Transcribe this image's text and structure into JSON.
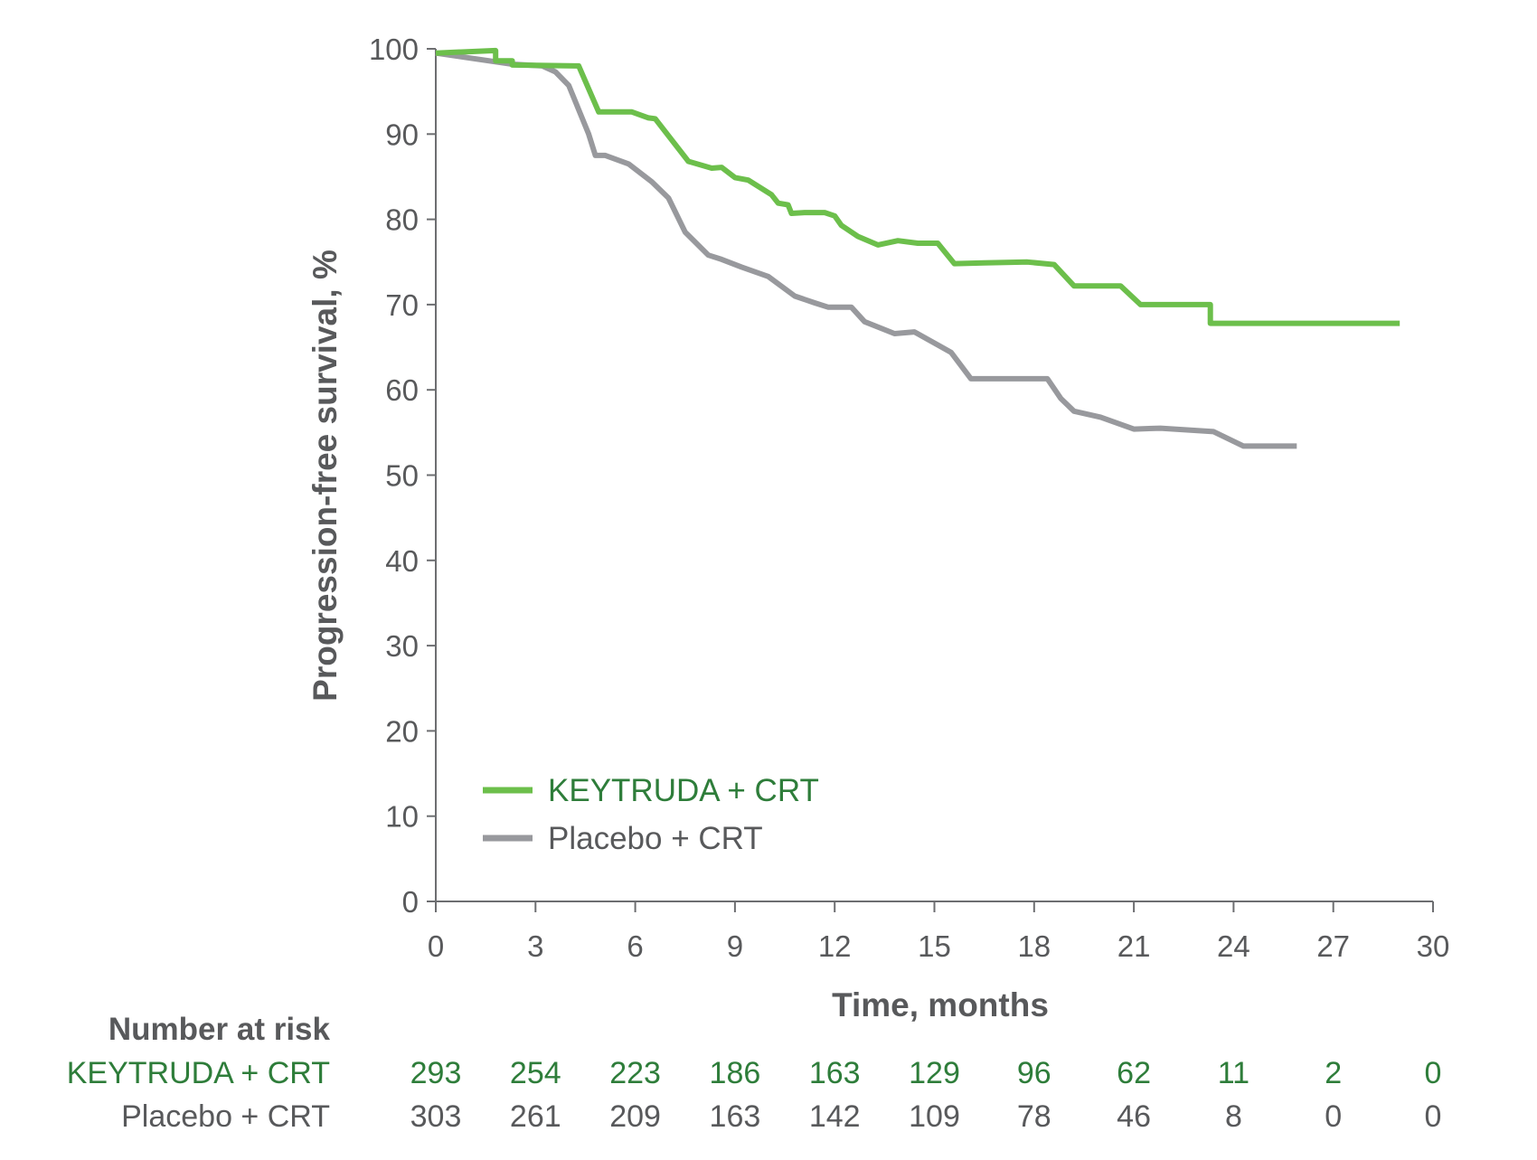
{
  "chart_data": {
    "type": "line",
    "xlabel": "Time, months",
    "ylabel": "Progression-free survival, %",
    "xlim": [
      0,
      30
    ],
    "ylim": [
      0,
      100
    ],
    "xticks": [
      0,
      3,
      6,
      9,
      12,
      15,
      18,
      21,
      24,
      27,
      30
    ],
    "yticks": [
      0,
      10,
      20,
      30,
      40,
      50,
      60,
      70,
      80,
      90,
      100
    ],
    "grid": false,
    "legend_position": "bottom-left",
    "series": [
      {
        "name": "KEYTRUDA + CRT",
        "color": "#6cbf4b",
        "points": [
          [
            0,
            99.5
          ],
          [
            1.8,
            99.8
          ],
          [
            1.8,
            98.6
          ],
          [
            2.3,
            98.6
          ],
          [
            2.3,
            98.1
          ],
          [
            4.3,
            98.0
          ],
          [
            4.9,
            92.6
          ],
          [
            5.9,
            92.6
          ],
          [
            6.4,
            91.9
          ],
          [
            6.6,
            91.8
          ],
          [
            7.6,
            86.8
          ],
          [
            8.3,
            86.0
          ],
          [
            8.6,
            86.1
          ],
          [
            9.0,
            84.9
          ],
          [
            9.4,
            84.6
          ],
          [
            10.1,
            82.9
          ],
          [
            10.3,
            81.9
          ],
          [
            10.6,
            81.7
          ],
          [
            10.7,
            80.7
          ],
          [
            11.1,
            80.8
          ],
          [
            11.7,
            80.8
          ],
          [
            12.0,
            80.4
          ],
          [
            12.2,
            79.3
          ],
          [
            12.7,
            78.0
          ],
          [
            13.3,
            77.0
          ],
          [
            13.9,
            77.5
          ],
          [
            14.5,
            77.2
          ],
          [
            15.1,
            77.2
          ],
          [
            15.6,
            74.8
          ],
          [
            16.5,
            74.9
          ],
          [
            17.8,
            75.0
          ],
          [
            18.6,
            74.7
          ],
          [
            19.2,
            72.2
          ],
          [
            20.6,
            72.2
          ],
          [
            21.2,
            70.0
          ],
          [
            23.3,
            70.0
          ],
          [
            23.3,
            67.8
          ],
          [
            29.0,
            67.8
          ]
        ]
      },
      {
        "name": "Placebo + CRT",
        "color": "#98999d",
        "points": [
          [
            0,
            99.5
          ],
          [
            2.3,
            98.2
          ],
          [
            3.2,
            98.0
          ],
          [
            3.6,
            97.3
          ],
          [
            4.0,
            95.7
          ],
          [
            4.6,
            90.0
          ],
          [
            4.8,
            87.5
          ],
          [
            5.1,
            87.5
          ],
          [
            5.8,
            86.5
          ],
          [
            6.5,
            84.4
          ],
          [
            7.0,
            82.5
          ],
          [
            7.5,
            78.5
          ],
          [
            8.2,
            75.8
          ],
          [
            8.6,
            75.3
          ],
          [
            9.2,
            74.4
          ],
          [
            10.0,
            73.3
          ],
          [
            10.8,
            71.0
          ],
          [
            11.4,
            70.2
          ],
          [
            11.8,
            69.7
          ],
          [
            12.5,
            69.7
          ],
          [
            12.9,
            68.0
          ],
          [
            13.8,
            66.6
          ],
          [
            14.4,
            66.8
          ],
          [
            15.5,
            64.4
          ],
          [
            16.1,
            61.3
          ],
          [
            18.4,
            61.3
          ],
          [
            18.8,
            59.0
          ],
          [
            19.2,
            57.5
          ],
          [
            20.0,
            56.8
          ],
          [
            21.0,
            55.4
          ],
          [
            21.8,
            55.5
          ],
          [
            23.4,
            55.1
          ],
          [
            24.3,
            53.4
          ],
          [
            25.9,
            53.4
          ]
        ]
      }
    ],
    "number_at_risk": {
      "title": "Number at risk",
      "rows": [
        {
          "label": "KEYTRUDA + CRT",
          "color": "#2e7d3a",
          "values": [
            "293",
            "254",
            "223",
            "186",
            "163",
            "129",
            "96",
            "62",
            "11",
            "2",
            "0"
          ]
        },
        {
          "label": "Placebo + CRT",
          "color": "#58595b",
          "values": [
            "303",
            "261",
            "209",
            "163",
            "142",
            "109",
            "78",
            "46",
            "8",
            "0",
            "0"
          ]
        }
      ]
    }
  }
}
